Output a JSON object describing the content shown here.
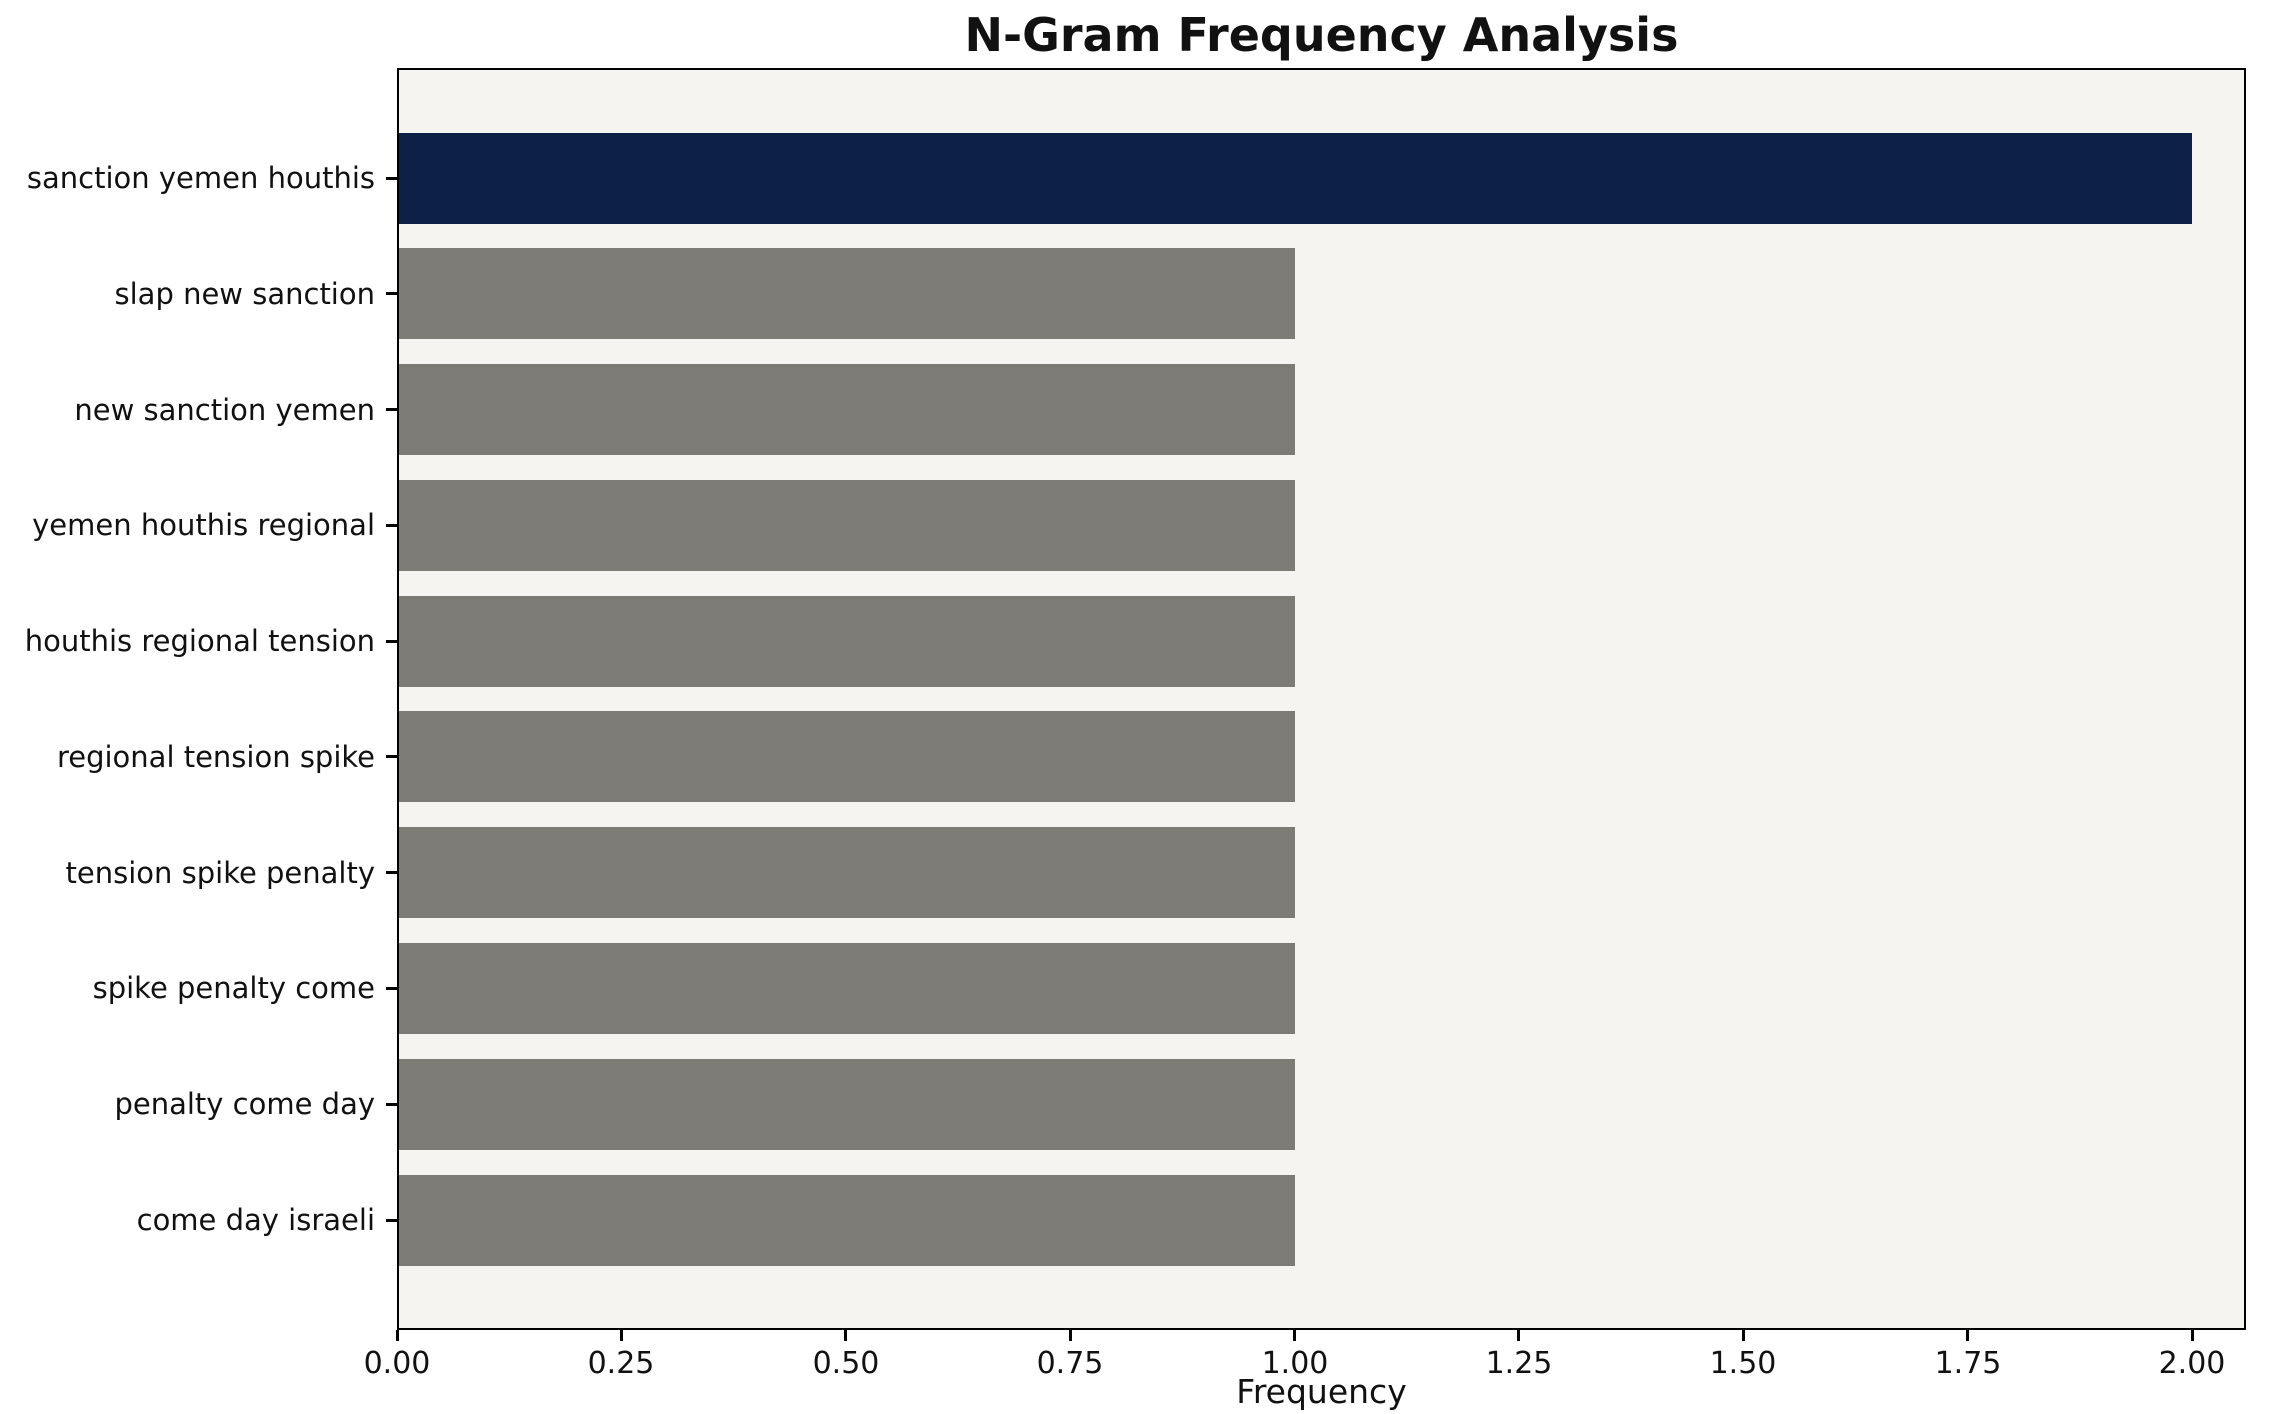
{
  "chart_data": {
    "type": "bar",
    "orientation": "horizontal",
    "title": "N-Gram Frequency Analysis",
    "xlabel": "Frequency",
    "ylabel": "",
    "categories": [
      "sanction yemen houthis",
      "slap new sanction",
      "new sanction yemen",
      "yemen houthis regional",
      "houthis regional tension",
      "regional tension spike",
      "tension spike penalty",
      "spike penalty come",
      "penalty come day",
      "come day israeli"
    ],
    "values": [
      2,
      1,
      1,
      1,
      1,
      1,
      1,
      1,
      1,
      1
    ],
    "bar_colors": [
      "#0c2145",
      "#7d7b76",
      "#7d7b76",
      "#7d7b76",
      "#7d7b76",
      "#7d7b76",
      "#7d7b76",
      "#7d7b76",
      "#7d7b76",
      "#7d7b76"
    ],
    "xlim": [
      0,
      2.06
    ],
    "xticks": [
      0.0,
      0.25,
      0.5,
      0.75,
      1.0,
      1.25,
      1.5,
      1.75,
      2.0
    ],
    "xtick_labels": [
      "0.00",
      "0.25",
      "0.50",
      "0.75",
      "1.00",
      "1.25",
      "1.50",
      "1.75",
      "2.00"
    ],
    "grid": false,
    "legend": false,
    "colors": {
      "highlight_bar": "#0c2145",
      "default_bar": "#7d7b76",
      "plot_background": "#f5f4f1",
      "figure_background": "#ffffff",
      "axis_border": "#000000",
      "text": "#111111"
    }
  }
}
